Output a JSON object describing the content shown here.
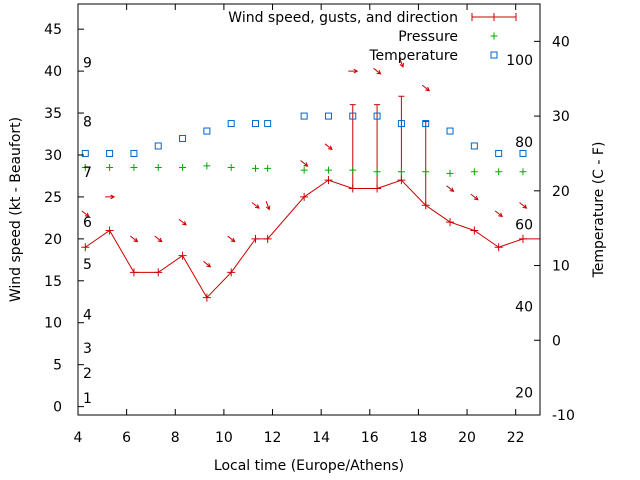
{
  "chart_data": {
    "type": "line",
    "xlabel": "Local time (Europe/Athens)",
    "ylabel_left": "Wind speed (kt - Beaufort)",
    "ylabel_right": "Temperature (C - F)",
    "xlim": [
      4,
      23
    ],
    "ylim": [
      -1,
      48
    ],
    "y2lim": [
      -10,
      45
    ],
    "x_ticks": [
      4,
      6,
      8,
      10,
      12,
      14,
      16,
      18,
      20,
      22
    ],
    "y_ticks": [
      0,
      5,
      10,
      15,
      20,
      25,
      30,
      35,
      40,
      45
    ],
    "y2_ticks": [
      -10,
      0,
      10,
      20,
      30,
      40
    ],
    "beaufort_labels": [
      {
        "text": "1",
        "y": 1
      },
      {
        "text": "2",
        "y": 4
      },
      {
        "text": "3",
        "y": 7
      },
      {
        "text": "4",
        "y": 11
      },
      {
        "text": "5",
        "y": 17
      },
      {
        "text": "6",
        "y": 22
      },
      {
        "text": "7",
        "y": 28
      },
      {
        "text": "8",
        "y": 34
      },
      {
        "text": "9",
        "y": 41
      }
    ],
    "fahrenheit_labels": [
      {
        "text": "20",
        "y2": -7
      },
      {
        "text": "40",
        "y2": 4.5
      },
      {
        "text": "60",
        "y2": 15.5
      },
      {
        "text": "80",
        "y2": 26.5
      },
      {
        "text": "100",
        "y2": 37.5
      }
    ],
    "series": [
      {
        "name": "Wind speed, gusts, and direction",
        "color": "#cc0000",
        "x": [
          4.3,
          5.3,
          6.3,
          7.3,
          8.3,
          9.3,
          10.3,
          11.3,
          11.8,
          13.3,
          14.3,
          15.3,
          16.3,
          17.3,
          18.3,
          19.3,
          20.3,
          21.3,
          22.3,
          23
        ],
        "y": [
          19,
          21,
          16,
          16,
          18,
          13,
          16,
          20,
          20,
          25,
          27,
          26,
          26,
          27,
          24,
          22,
          21,
          19,
          20,
          20
        ],
        "gusts": [
          {
            "x": 15.3,
            "y": 36
          },
          {
            "x": 16.3,
            "y": 36
          },
          {
            "x": 17.3,
            "y": 37
          },
          {
            "x": 18.3,
            "y": 34
          }
        ],
        "arrows": [
          {
            "x": 4.3,
            "y": 23,
            "dir": "se"
          },
          {
            "x": 5.3,
            "y": 25,
            "dir": "e"
          },
          {
            "x": 6.3,
            "y": 20,
            "dir": "se"
          },
          {
            "x": 7.3,
            "y": 20,
            "dir": "se"
          },
          {
            "x": 8.3,
            "y": 22,
            "dir": "se"
          },
          {
            "x": 9.3,
            "y": 17,
            "dir": "se"
          },
          {
            "x": 10.3,
            "y": 20,
            "dir": "se"
          },
          {
            "x": 11.3,
            "y": 24,
            "dir": "se"
          },
          {
            "x": 11.8,
            "y": 24,
            "dir": "s"
          },
          {
            "x": 13.3,
            "y": 29,
            "dir": "se"
          },
          {
            "x": 14.3,
            "y": 31,
            "dir": "se"
          },
          {
            "x": 15.3,
            "y": 40,
            "dir": "e"
          },
          {
            "x": 16.3,
            "y": 40,
            "dir": "se"
          },
          {
            "x": 17.3,
            "y": 41,
            "dir": "s"
          },
          {
            "x": 18.3,
            "y": 38,
            "dir": "se"
          },
          {
            "x": 19.3,
            "y": 26,
            "dir": "se"
          },
          {
            "x": 20.3,
            "y": 25,
            "dir": "se"
          },
          {
            "x": 21.3,
            "y": 23,
            "dir": "se"
          },
          {
            "x": 22.3,
            "y": 24,
            "dir": "se"
          }
        ]
      },
      {
        "name": "Pressure",
        "color": "#00aa00",
        "marker": "+",
        "x": [
          4.3,
          5.3,
          6.3,
          7.3,
          8.3,
          9.3,
          10.3,
          11.3,
          11.8,
          13.3,
          14.3,
          15.3,
          16.3,
          17.3,
          18.3,
          19.3,
          20.3,
          21.3,
          22.3
        ],
        "y": [
          28.5,
          28.5,
          28.5,
          28.5,
          28.5,
          28.7,
          28.5,
          28.4,
          28.4,
          28.2,
          28.2,
          28.2,
          28.0,
          28.0,
          28.0,
          27.8,
          28.0,
          28.0,
          28.0
        ]
      },
      {
        "name": "Temperature",
        "color": "#0066cc",
        "marker": "square",
        "axis": "right",
        "x": [
          4.3,
          5.3,
          6.3,
          7.3,
          8.3,
          9.3,
          10.3,
          11.3,
          11.8,
          13.3,
          14.3,
          15.3,
          16.3,
          17.3,
          18.3,
          19.3,
          20.3,
          21.3,
          22.3
        ],
        "y": [
          25,
          25,
          25,
          26,
          27,
          28,
          29,
          29,
          29,
          30,
          30,
          30,
          30,
          29,
          29,
          28,
          26,
          25,
          25
        ]
      }
    ]
  }
}
